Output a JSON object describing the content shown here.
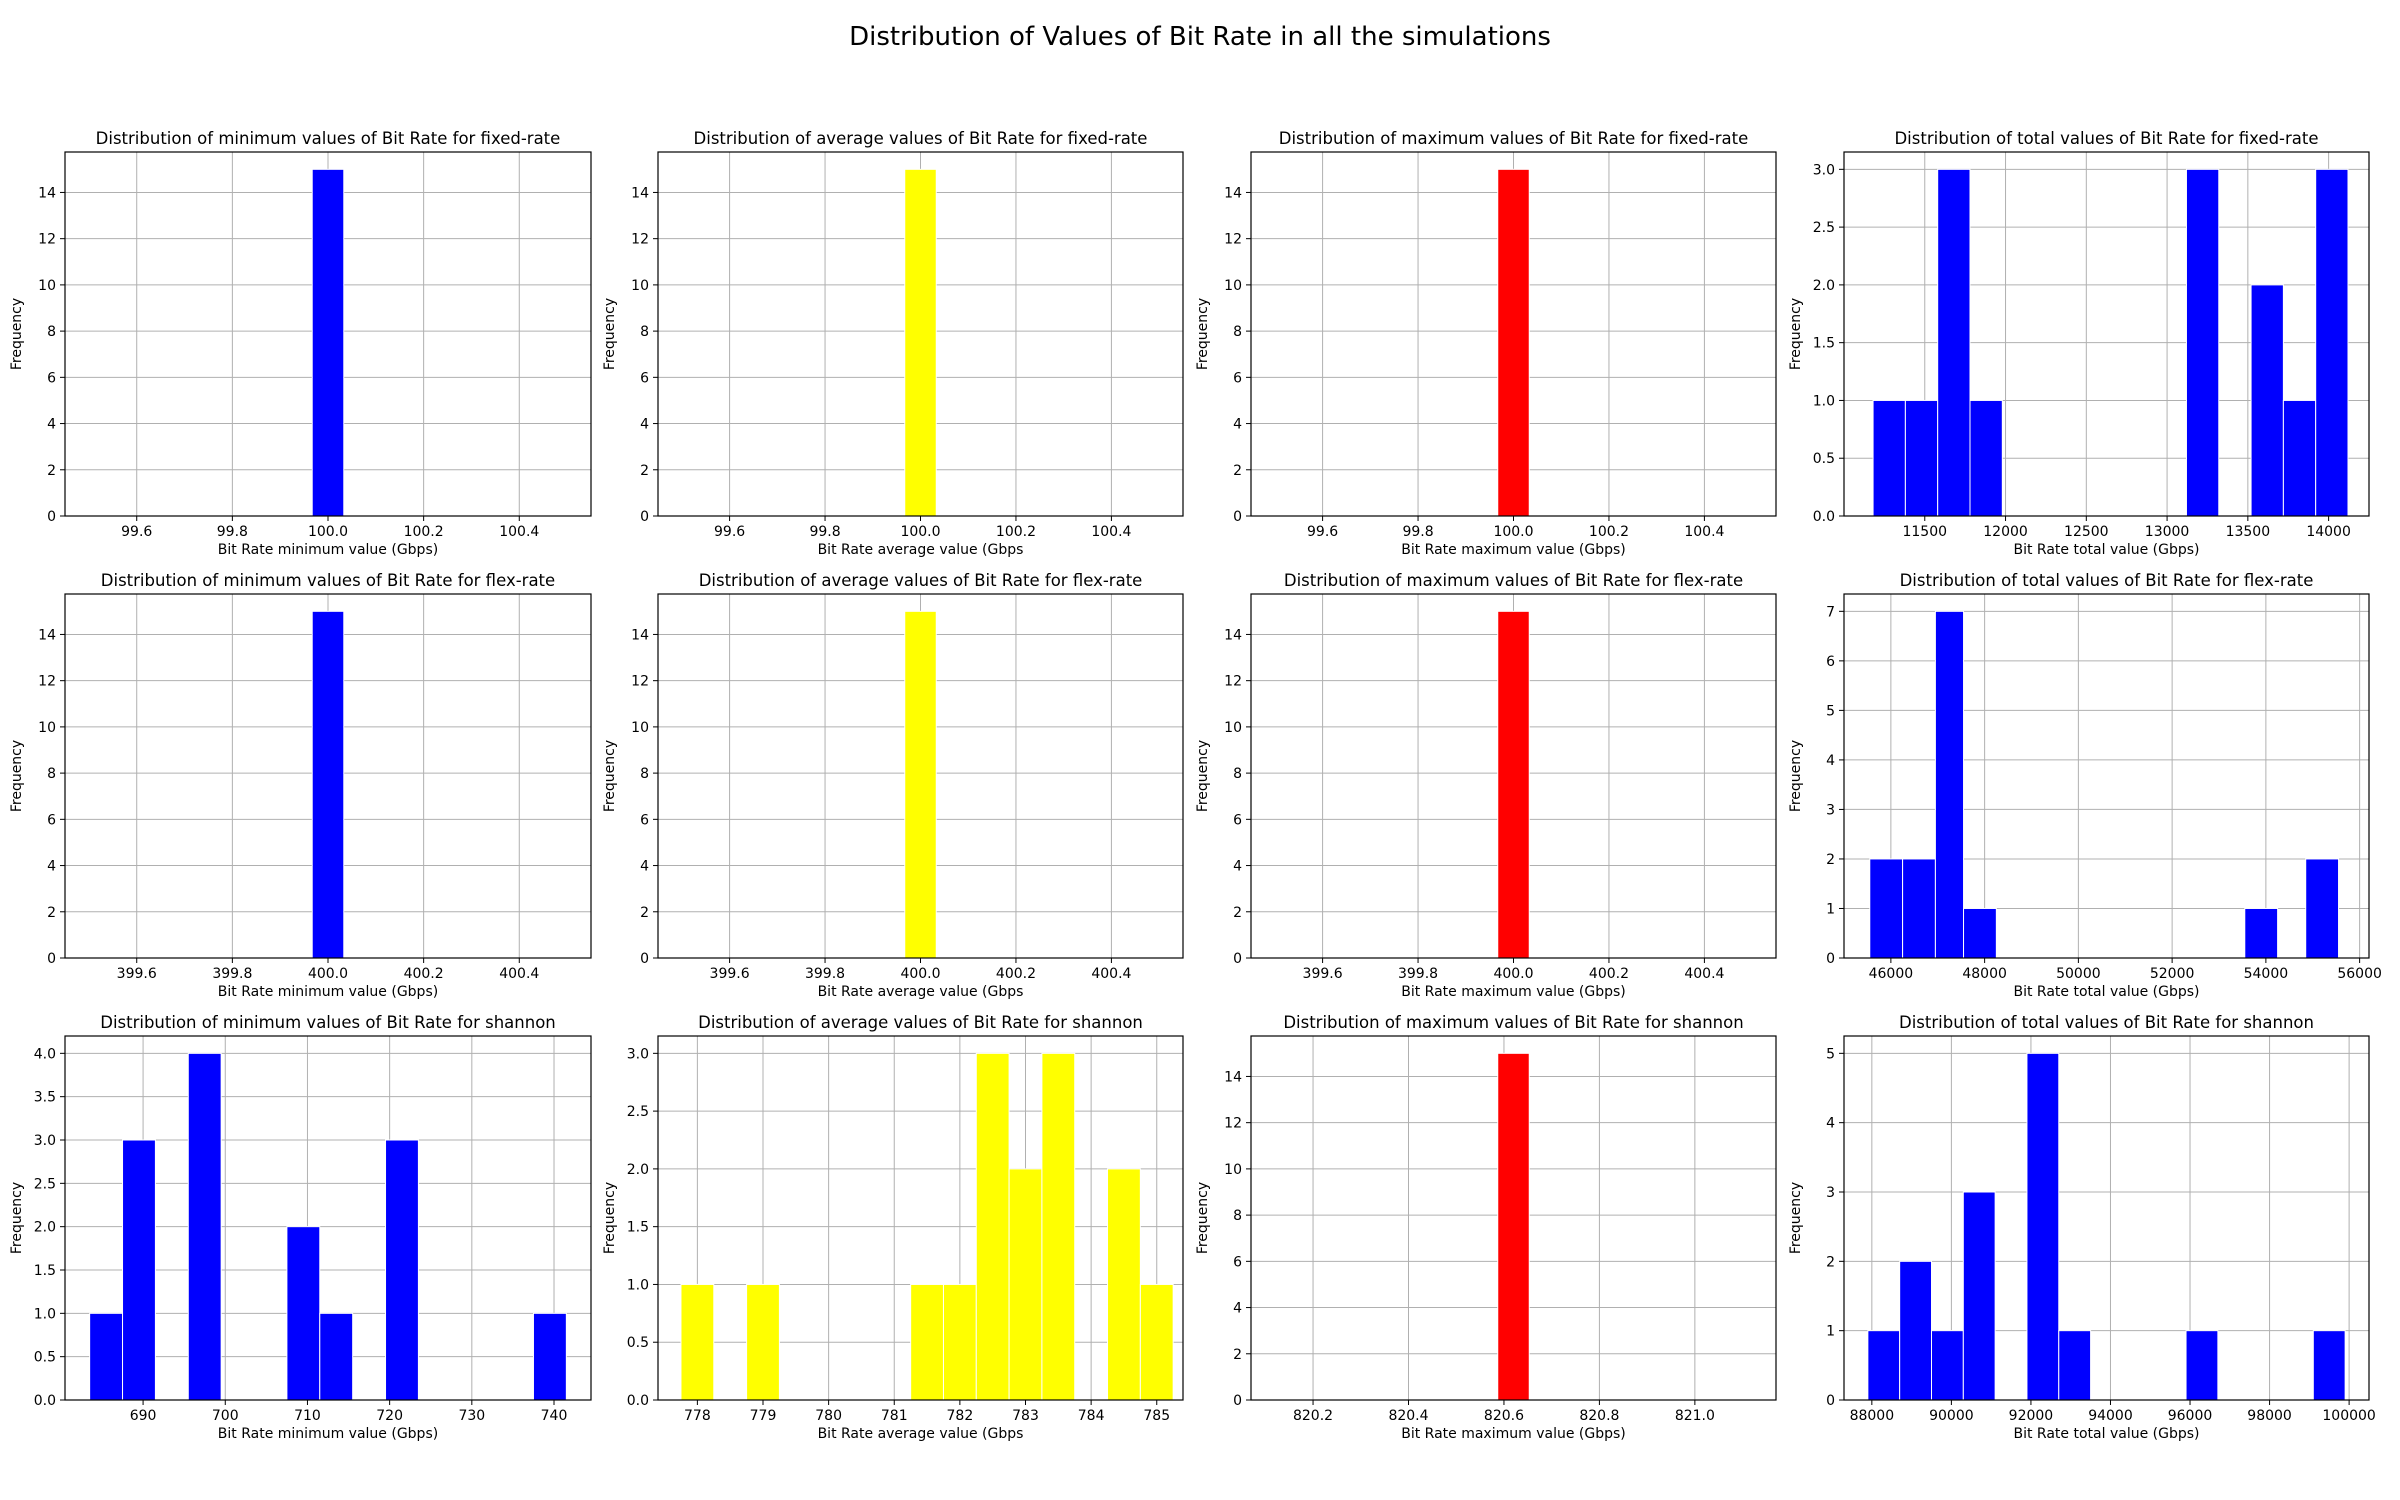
{
  "figure": {
    "suptitle": "Distribution of Values of Bit Rate in all the simulations",
    "bar_colors": {
      "blue": "#0000ff",
      "yellow": "#ffff00",
      "red": "#ff0000"
    }
  },
  "chart_data": [
    {
      "type": "bar",
      "title": "Distribution of minimum values of Bit Rate for fixed-rate",
      "xlabel": "Bit Rate minimum value (Gbps)",
      "ylabel": "Frequency",
      "color": "blue",
      "grid": true,
      "xlim": [
        99.45,
        100.55
      ],
      "ylim": [
        0,
        15.75
      ],
      "xticks": [
        99.6,
        99.8,
        100.0,
        100.2,
        100.4
      ],
      "yticks": [
        0,
        2,
        4,
        6,
        8,
        10,
        12,
        14
      ],
      "bins": [
        {
          "x0": 99.967,
          "x1": 100.033,
          "count": 15
        }
      ]
    },
    {
      "type": "bar",
      "title": "Distribution of average values of Bit Rate for fixed-rate",
      "xlabel": "Bit Rate average value (Gbps",
      "ylabel": "Frequency",
      "color": "yellow",
      "grid": true,
      "xlim": [
        99.45,
        100.55
      ],
      "ylim": [
        0,
        15.75
      ],
      "xticks": [
        99.6,
        99.8,
        100.0,
        100.2,
        100.4
      ],
      "yticks": [
        0,
        2,
        4,
        6,
        8,
        10,
        12,
        14
      ],
      "bins": [
        {
          "x0": 99.967,
          "x1": 100.033,
          "count": 15
        }
      ]
    },
    {
      "type": "bar",
      "title": "Distribution of maximum values of Bit Rate  for fixed-rate",
      "xlabel": "Bit Rate maximum value (Gbps)",
      "ylabel": "Frequency",
      "color": "red",
      "grid": true,
      "xlim": [
        99.45,
        100.55
      ],
      "ylim": [
        0,
        15.75
      ],
      "xticks": [
        99.6,
        99.8,
        100.0,
        100.2,
        100.4
      ],
      "yticks": [
        0,
        2,
        4,
        6,
        8,
        10,
        12,
        14
      ],
      "bins": [
        {
          "x0": 99.967,
          "x1": 100.033,
          "count": 15
        }
      ]
    },
    {
      "type": "bar",
      "title": "Distribution of total values of Bit Rate  for fixed-rate",
      "xlabel": "Bit Rate total value (Gbps)",
      "ylabel": "Frequency",
      "color": "blue",
      "grid": true,
      "xlim": [
        11000,
        14250
      ],
      "ylim": [
        0,
        3.15
      ],
      "xticks": [
        11500,
        12000,
        12500,
        13000,
        13500,
        14000
      ],
      "yticks": [
        0.0,
        0.5,
        1.0,
        1.5,
        2.0,
        2.5,
        3.0
      ],
      "bins": [
        {
          "x0": 11180,
          "x1": 11380,
          "count": 1
        },
        {
          "x0": 11380,
          "x1": 11580,
          "count": 1
        },
        {
          "x0": 11580,
          "x1": 11780,
          "count": 3
        },
        {
          "x0": 11780,
          "x1": 11980,
          "count": 1
        },
        {
          "x0": 13120,
          "x1": 13320,
          "count": 3
        },
        {
          "x0": 13520,
          "x1": 13720,
          "count": 2
        },
        {
          "x0": 13720,
          "x1": 13920,
          "count": 1
        },
        {
          "x0": 13920,
          "x1": 14120,
          "count": 3
        }
      ]
    },
    {
      "type": "bar",
      "title": "Distribution of minimum values of Bit Rate for flex-rate",
      "xlabel": "Bit Rate minimum value (Gbps)",
      "ylabel": "Frequency",
      "color": "blue",
      "grid": true,
      "xlim": [
        399.45,
        400.55
      ],
      "ylim": [
        0,
        15.75
      ],
      "xticks": [
        399.6,
        399.8,
        400.0,
        400.2,
        400.4
      ],
      "yticks": [
        0,
        2,
        4,
        6,
        8,
        10,
        12,
        14
      ],
      "bins": [
        {
          "x0": 399.967,
          "x1": 400.033,
          "count": 15
        }
      ]
    },
    {
      "type": "bar",
      "title": "Distribution of average values of Bit Rate for flex-rate",
      "xlabel": "Bit Rate average value (Gbps",
      "ylabel": "Frequency",
      "color": "yellow",
      "grid": true,
      "xlim": [
        399.45,
        400.55
      ],
      "ylim": [
        0,
        15.75
      ],
      "xticks": [
        399.6,
        399.8,
        400.0,
        400.2,
        400.4
      ],
      "yticks": [
        0,
        2,
        4,
        6,
        8,
        10,
        12,
        14
      ],
      "bins": [
        {
          "x0": 399.967,
          "x1": 400.033,
          "count": 15
        }
      ]
    },
    {
      "type": "bar",
      "title": "Distribution of maximum values of Bit Rate  for flex-rate",
      "xlabel": "Bit Rate maximum value (Gbps)",
      "ylabel": "Frequency",
      "color": "red",
      "grid": true,
      "xlim": [
        399.45,
        400.55
      ],
      "ylim": [
        0,
        15.75
      ],
      "xticks": [
        399.6,
        399.8,
        400.0,
        400.2,
        400.4
      ],
      "yticks": [
        0,
        2,
        4,
        6,
        8,
        10,
        12,
        14
      ],
      "bins": [
        {
          "x0": 399.967,
          "x1": 400.033,
          "count": 15
        }
      ]
    },
    {
      "type": "bar",
      "title": "Distribution of total values of Bit Rate  for flex-rate",
      "xlabel": "Bit Rate total value (Gbps)",
      "ylabel": "Frequency",
      "color": "blue",
      "grid": true,
      "xlim": [
        45000,
        56200
      ],
      "ylim": [
        0,
        7.35
      ],
      "xticks": [
        46000,
        48000,
        50000,
        52000,
        54000,
        56000
      ],
      "yticks": [
        0,
        1,
        2,
        3,
        4,
        5,
        6,
        7
      ],
      "bins": [
        {
          "x0": 45550,
          "x1": 46250,
          "count": 2
        },
        {
          "x0": 46250,
          "x1": 46950,
          "count": 2
        },
        {
          "x0": 46950,
          "x1": 47550,
          "count": 7
        },
        {
          "x0": 47550,
          "x1": 48250,
          "count": 1
        },
        {
          "x0": 53550,
          "x1": 54250,
          "count": 1
        },
        {
          "x0": 54850,
          "x1": 55550,
          "count": 2
        }
      ]
    },
    {
      "type": "bar",
      "title": "Distribution of minimum values of Bit Rate for shannon",
      "xlabel": "Bit Rate minimum value (Gbps)",
      "ylabel": "Frequency",
      "color": "blue",
      "grid": true,
      "xlim": [
        680.5,
        744.5
      ],
      "ylim": [
        0,
        4.2
      ],
      "xticks": [
        690,
        700,
        710,
        720,
        730,
        740
      ],
      "yticks": [
        0.0,
        0.5,
        1.0,
        1.5,
        2.0,
        2.5,
        3.0,
        3.5,
        4.0
      ],
      "bins": [
        {
          "x0": 683.5,
          "x1": 687.5,
          "count": 1
        },
        {
          "x0": 687.5,
          "x1": 691.5,
          "count": 3
        },
        {
          "x0": 695.5,
          "x1": 699.5,
          "count": 4
        },
        {
          "x0": 707.5,
          "x1": 711.5,
          "count": 2
        },
        {
          "x0": 711.5,
          "x1": 715.5,
          "count": 1
        },
        {
          "x0": 719.5,
          "x1": 723.5,
          "count": 3
        },
        {
          "x0": 737.5,
          "x1": 741.5,
          "count": 1
        }
      ]
    },
    {
      "type": "bar",
      "title": "Distribution of average values of Bit Rate for shannon",
      "xlabel": "Bit Rate average value (Gbps",
      "ylabel": "Frequency",
      "color": "yellow",
      "grid": true,
      "xlim": [
        777.4,
        785.4
      ],
      "ylim": [
        0,
        3.15
      ],
      "xticks": [
        778,
        779,
        780,
        781,
        782,
        783,
        784,
        785
      ],
      "yticks": [
        0.0,
        0.5,
        1.0,
        1.5,
        2.0,
        2.5,
        3.0
      ],
      "bins": [
        {
          "x0": 777.75,
          "x1": 778.25,
          "count": 1
        },
        {
          "x0": 778.75,
          "x1": 779.25,
          "count": 1
        },
        {
          "x0": 781.25,
          "x1": 781.75,
          "count": 1
        },
        {
          "x0": 781.75,
          "x1": 782.25,
          "count": 1
        },
        {
          "x0": 782.25,
          "x1": 782.75,
          "count": 3
        },
        {
          "x0": 782.75,
          "x1": 783.25,
          "count": 2
        },
        {
          "x0": 783.25,
          "x1": 783.75,
          "count": 3
        },
        {
          "x0": 784.25,
          "x1": 784.75,
          "count": 2
        },
        {
          "x0": 784.75,
          "x1": 785.25,
          "count": 1
        }
      ]
    },
    {
      "type": "bar",
      "title": "Distribution of maximum values of Bit Rate  for shannon",
      "xlabel": "Bit Rate maximum value (Gbps)",
      "ylabel": "Frequency",
      "color": "red",
      "grid": true,
      "xlim": [
        820.07,
        821.17
      ],
      "ylim": [
        0,
        15.75
      ],
      "xticks": [
        820.2,
        820.4,
        820.6,
        820.8,
        821.0
      ],
      "yticks": [
        0,
        2,
        4,
        6,
        8,
        10,
        12,
        14
      ],
      "bins": [
        {
          "x0": 820.587,
          "x1": 820.653,
          "count": 15
        }
      ]
    },
    {
      "type": "bar",
      "title": "Distribution of total values of Bit Rate  for shannon",
      "xlabel": "Bit Rate total value (Gbps)",
      "ylabel": "Frequency",
      "color": "blue",
      "grid": true,
      "xlim": [
        87300,
        100500
      ],
      "ylim": [
        0,
        5.25
      ],
      "xticks": [
        88000,
        90000,
        92000,
        94000,
        96000,
        98000,
        100000
      ],
      "yticks": [
        0,
        1,
        2,
        3,
        4,
        5
      ],
      "bins": [
        {
          "x0": 87900,
          "x1": 88700,
          "count": 1
        },
        {
          "x0": 88700,
          "x1": 89500,
          "count": 2
        },
        {
          "x0": 89500,
          "x1": 90300,
          "count": 1
        },
        {
          "x0": 90300,
          "x1": 91100,
          "count": 3
        },
        {
          "x0": 91900,
          "x1": 92700,
          "count": 5
        },
        {
          "x0": 92700,
          "x1": 93500,
          "count": 1
        },
        {
          "x0": 95900,
          "x1": 96700,
          "count": 1
        },
        {
          "x0": 99100,
          "x1": 99900,
          "count": 1
        }
      ]
    }
  ]
}
